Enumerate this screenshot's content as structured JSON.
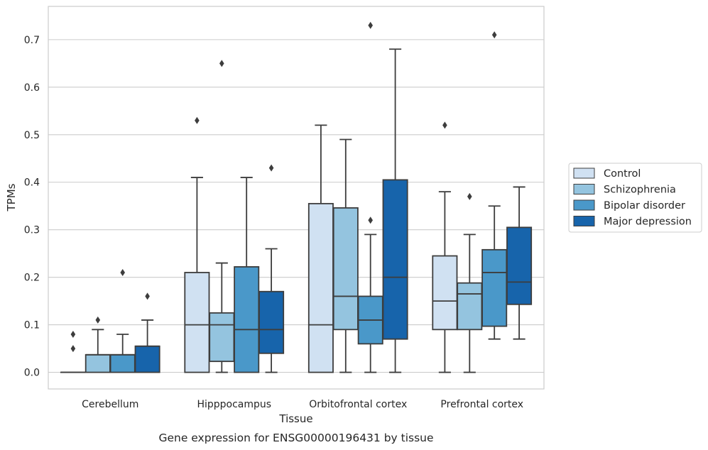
{
  "chart_data": {
    "type": "boxplot",
    "caption": "Gene expression for ENSG00000196431 by tissue",
    "xlabel": "Tissue",
    "ylabel": "TPMs",
    "ylim": [
      -0.035,
      0.77
    ],
    "yticks": [
      "0.0",
      "0.1",
      "0.2",
      "0.3",
      "0.4",
      "0.5",
      "0.6",
      "0.7"
    ],
    "grid": true,
    "legend_position": "right",
    "categories": [
      "Cerebellum",
      "Hipppocampus",
      "Orbitofrontal cortex",
      "Prefrontal cortex"
    ],
    "series": [
      {
        "name": "Control",
        "color": "#d0e1f2",
        "boxes": [
          {
            "whislo": 0,
            "q1": 0,
            "med": 0,
            "q3": 0,
            "whishi": 0,
            "fliers": [
              0.05,
              0.08
            ]
          },
          {
            "whislo": 0,
            "q1": 0,
            "med": 0.1,
            "q3": 0.21,
            "whishi": 0.41,
            "fliers": [
              0.53
            ]
          },
          {
            "whislo": 0,
            "q1": 0,
            "med": 0.1,
            "q3": 0.355,
            "whishi": 0.52,
            "fliers": []
          },
          {
            "whislo": 0,
            "q1": 0.09,
            "med": 0.15,
            "q3": 0.245,
            "whishi": 0.38,
            "fliers": [
              0.52
            ]
          }
        ]
      },
      {
        "name": "Schizophrenia",
        "color": "#94c4df",
        "boxes": [
          {
            "whislo": 0,
            "q1": 0,
            "med": 0.037,
            "q3": 0.037,
            "whishi": 0.09,
            "fliers": [
              0.11
            ]
          },
          {
            "whislo": 0,
            "q1": 0.023,
            "med": 0.1,
            "q3": 0.125,
            "whishi": 0.23,
            "fliers": [
              0.65
            ]
          },
          {
            "whislo": 0,
            "q1": 0.09,
            "med": 0.16,
            "q3": 0.346,
            "whishi": 0.49,
            "fliers": []
          },
          {
            "whislo": 0,
            "q1": 0.09,
            "med": 0.165,
            "q3": 0.188,
            "whishi": 0.29,
            "fliers": [
              0.37
            ]
          }
        ]
      },
      {
        "name": "Bipolar disorder",
        "color": "#4a98c9",
        "boxes": [
          {
            "whislo": 0,
            "q1": 0,
            "med": 0.037,
            "q3": 0.037,
            "whishi": 0.08,
            "fliers": [
              0.21
            ]
          },
          {
            "whislo": 0,
            "q1": 0,
            "med": 0.09,
            "q3": 0.222,
            "whishi": 0.41,
            "fliers": []
          },
          {
            "whislo": 0,
            "q1": 0.06,
            "med": 0.11,
            "q3": 0.16,
            "whishi": 0.29,
            "fliers": [
              0.32,
              0.73
            ]
          },
          {
            "whislo": 0.07,
            "q1": 0.097,
            "med": 0.21,
            "q3": 0.258,
            "whishi": 0.35,
            "fliers": [
              0.71
            ]
          }
        ]
      },
      {
        "name": "Major depression",
        "color": "#1764ab",
        "boxes": [
          {
            "whislo": 0,
            "q1": 0,
            "med": 0.055,
            "q3": 0.055,
            "whishi": 0.11,
            "fliers": [
              0.16
            ]
          },
          {
            "whislo": 0,
            "q1": 0.04,
            "med": 0.09,
            "q3": 0.17,
            "whishi": 0.26,
            "fliers": [
              0.43
            ]
          },
          {
            "whislo": 0,
            "q1": 0.07,
            "med": 0.2,
            "q3": 0.405,
            "whishi": 0.68,
            "fliers": []
          },
          {
            "whislo": 0.07,
            "q1": 0.143,
            "med": 0.19,
            "q3": 0.305,
            "whishi": 0.39,
            "fliers": []
          }
        ]
      }
    ]
  }
}
